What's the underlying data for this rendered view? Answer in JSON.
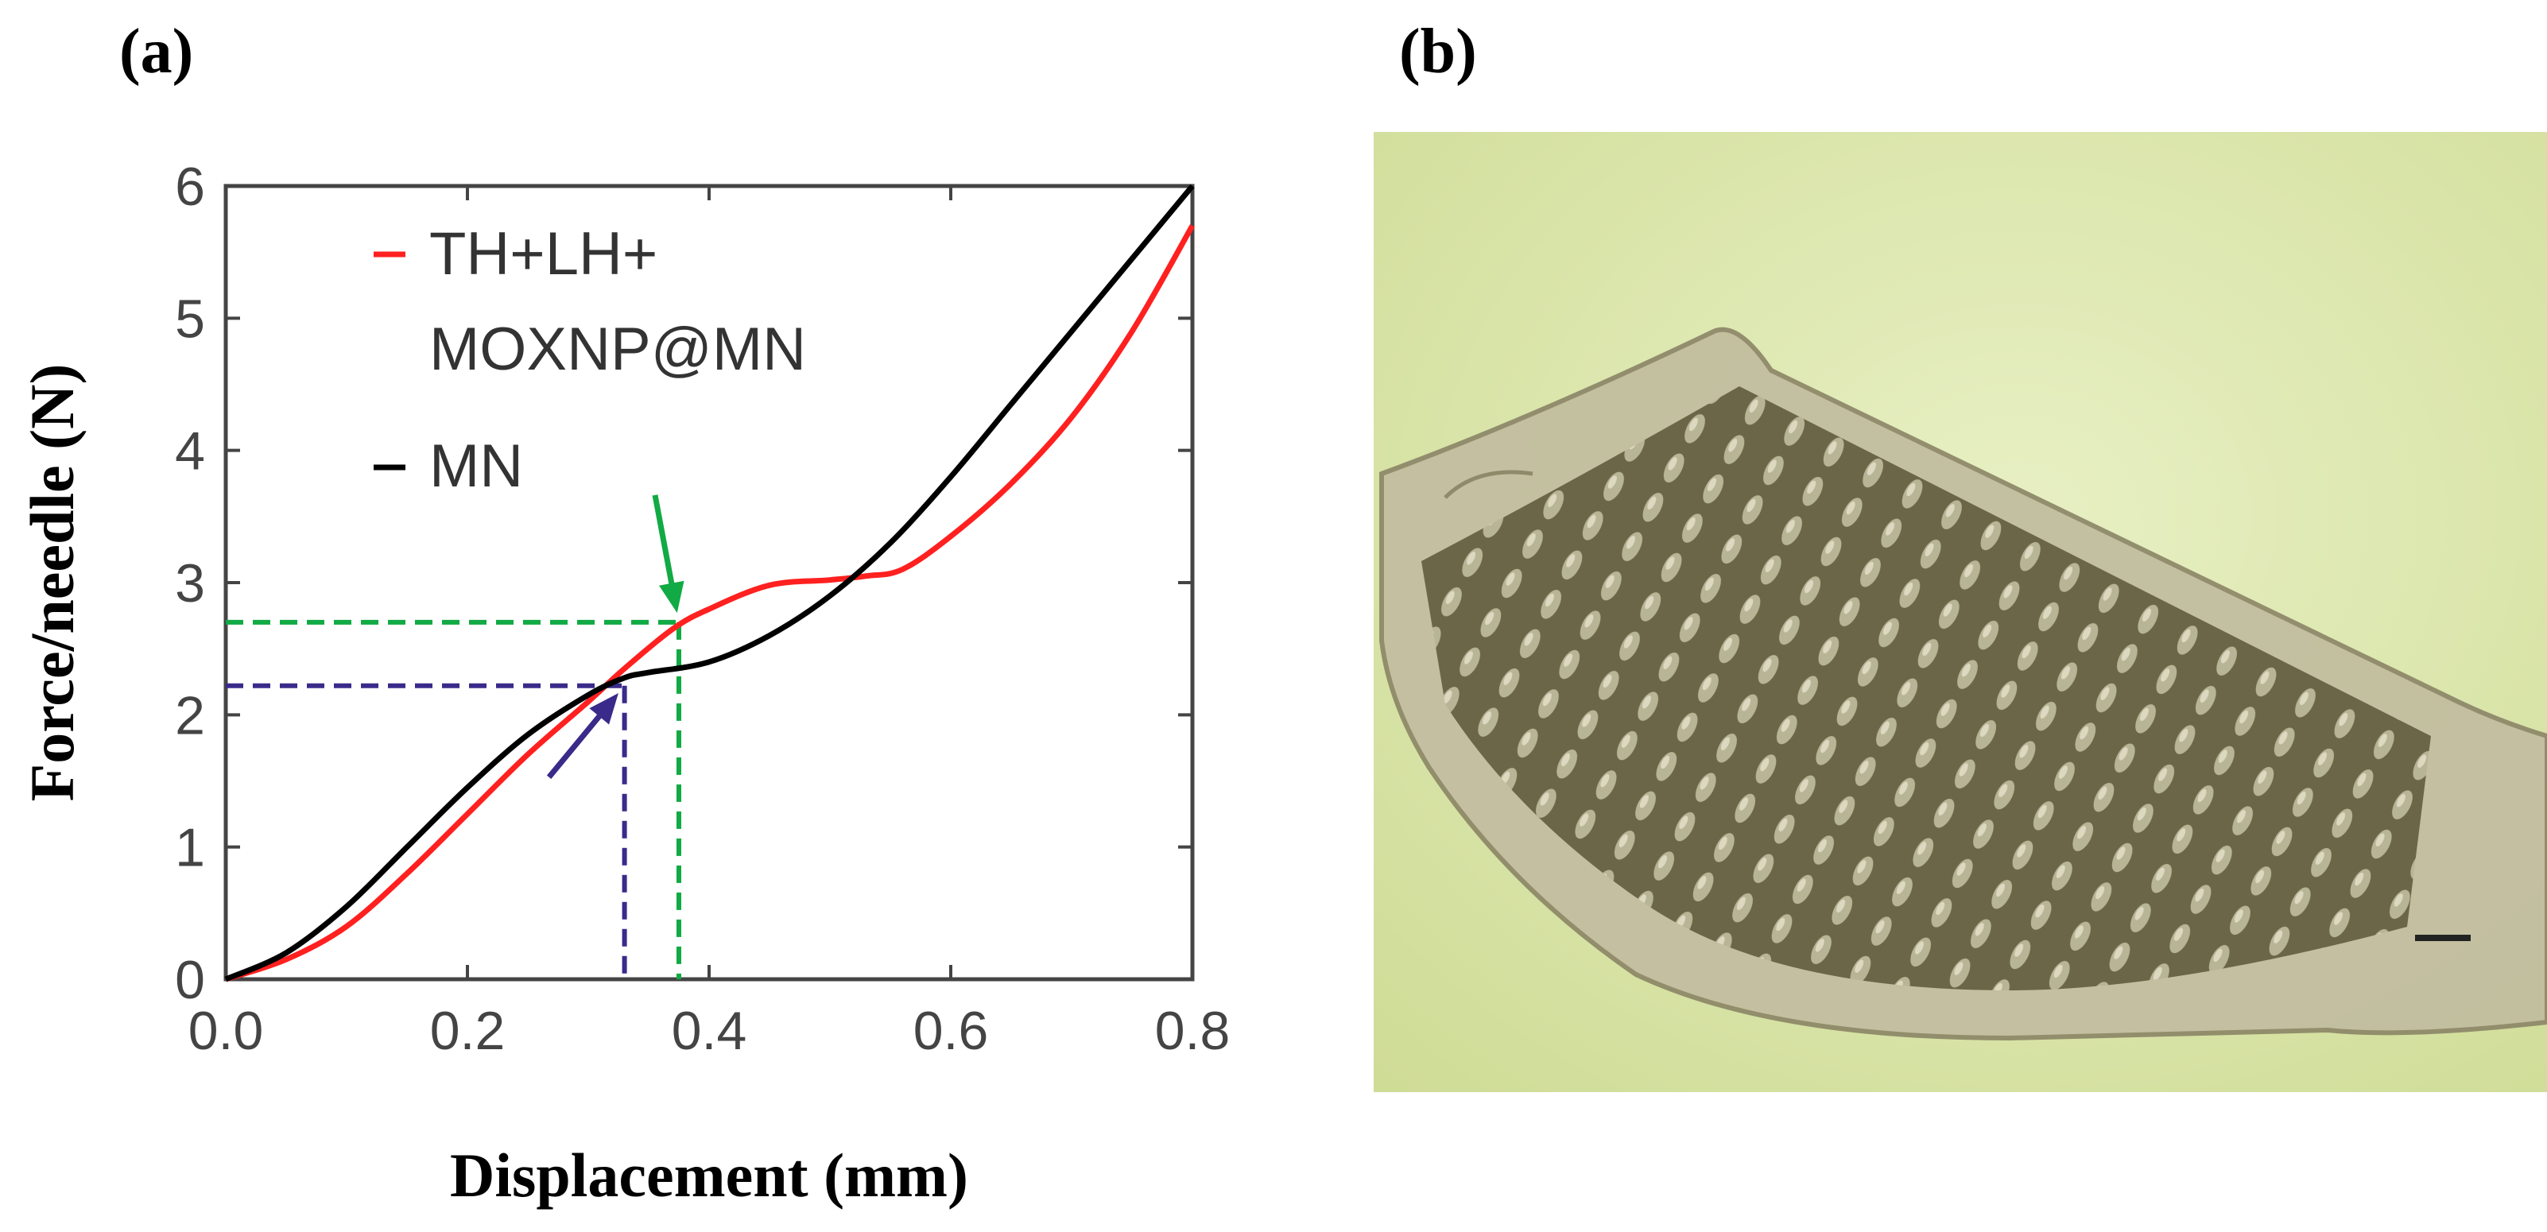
{
  "panels": {
    "a_label": "(a)",
    "b_label": "(b)"
  },
  "chart_data": {
    "type": "line",
    "title": "",
    "xlabel": "Displacement (mm)",
    "ylabel": "Force/needle (N)",
    "xlim": [
      0,
      0.8
    ],
    "ylim": [
      0,
      6
    ],
    "xticks": [
      "0.0",
      "0.2",
      "0.4",
      "0.6",
      "0.8"
    ],
    "yticks": [
      "0",
      "1",
      "2",
      "3",
      "4",
      "5",
      "6"
    ],
    "legend": {
      "position": "top-left",
      "entries": [
        "TH+LH+",
        "MOXNP@MN",
        "MN"
      ]
    },
    "series": [
      {
        "name": "TH+LH+MOXNP@MN",
        "color": "#ff2020",
        "x": [
          0,
          0.05,
          0.1,
          0.15,
          0.2,
          0.25,
          0.3,
          0.33,
          0.37,
          0.4,
          0.45,
          0.5,
          0.53,
          0.56,
          0.6,
          0.65,
          0.7,
          0.75,
          0.8
        ],
        "y": [
          0,
          0.15,
          0.4,
          0.8,
          1.25,
          1.7,
          2.1,
          2.35,
          2.65,
          2.8,
          2.98,
          3.02,
          3.05,
          3.1,
          3.35,
          3.75,
          4.25,
          4.9,
          5.7
        ]
      },
      {
        "name": "MN",
        "color": "#000000",
        "x": [
          0,
          0.05,
          0.1,
          0.15,
          0.2,
          0.25,
          0.3,
          0.33,
          0.35,
          0.4,
          0.45,
          0.5,
          0.55,
          0.6,
          0.65,
          0.7,
          0.75,
          0.8
        ],
        "y": [
          0,
          0.2,
          0.55,
          1.0,
          1.45,
          1.85,
          2.15,
          2.28,
          2.32,
          2.4,
          2.6,
          2.9,
          3.3,
          3.8,
          4.35,
          4.9,
          5.45,
          6.0
        ]
      }
    ],
    "annotations": [
      {
        "label": "green dashed marker",
        "color": "#11aa44",
        "x": 0.375,
        "y": 2.7
      },
      {
        "label": "purple dashed marker",
        "color": "#3a2a8a",
        "x": 0.33,
        "y": 2.22
      }
    ]
  },
  "photo": {
    "description_icon": "microneedle-array-photo-icon"
  }
}
